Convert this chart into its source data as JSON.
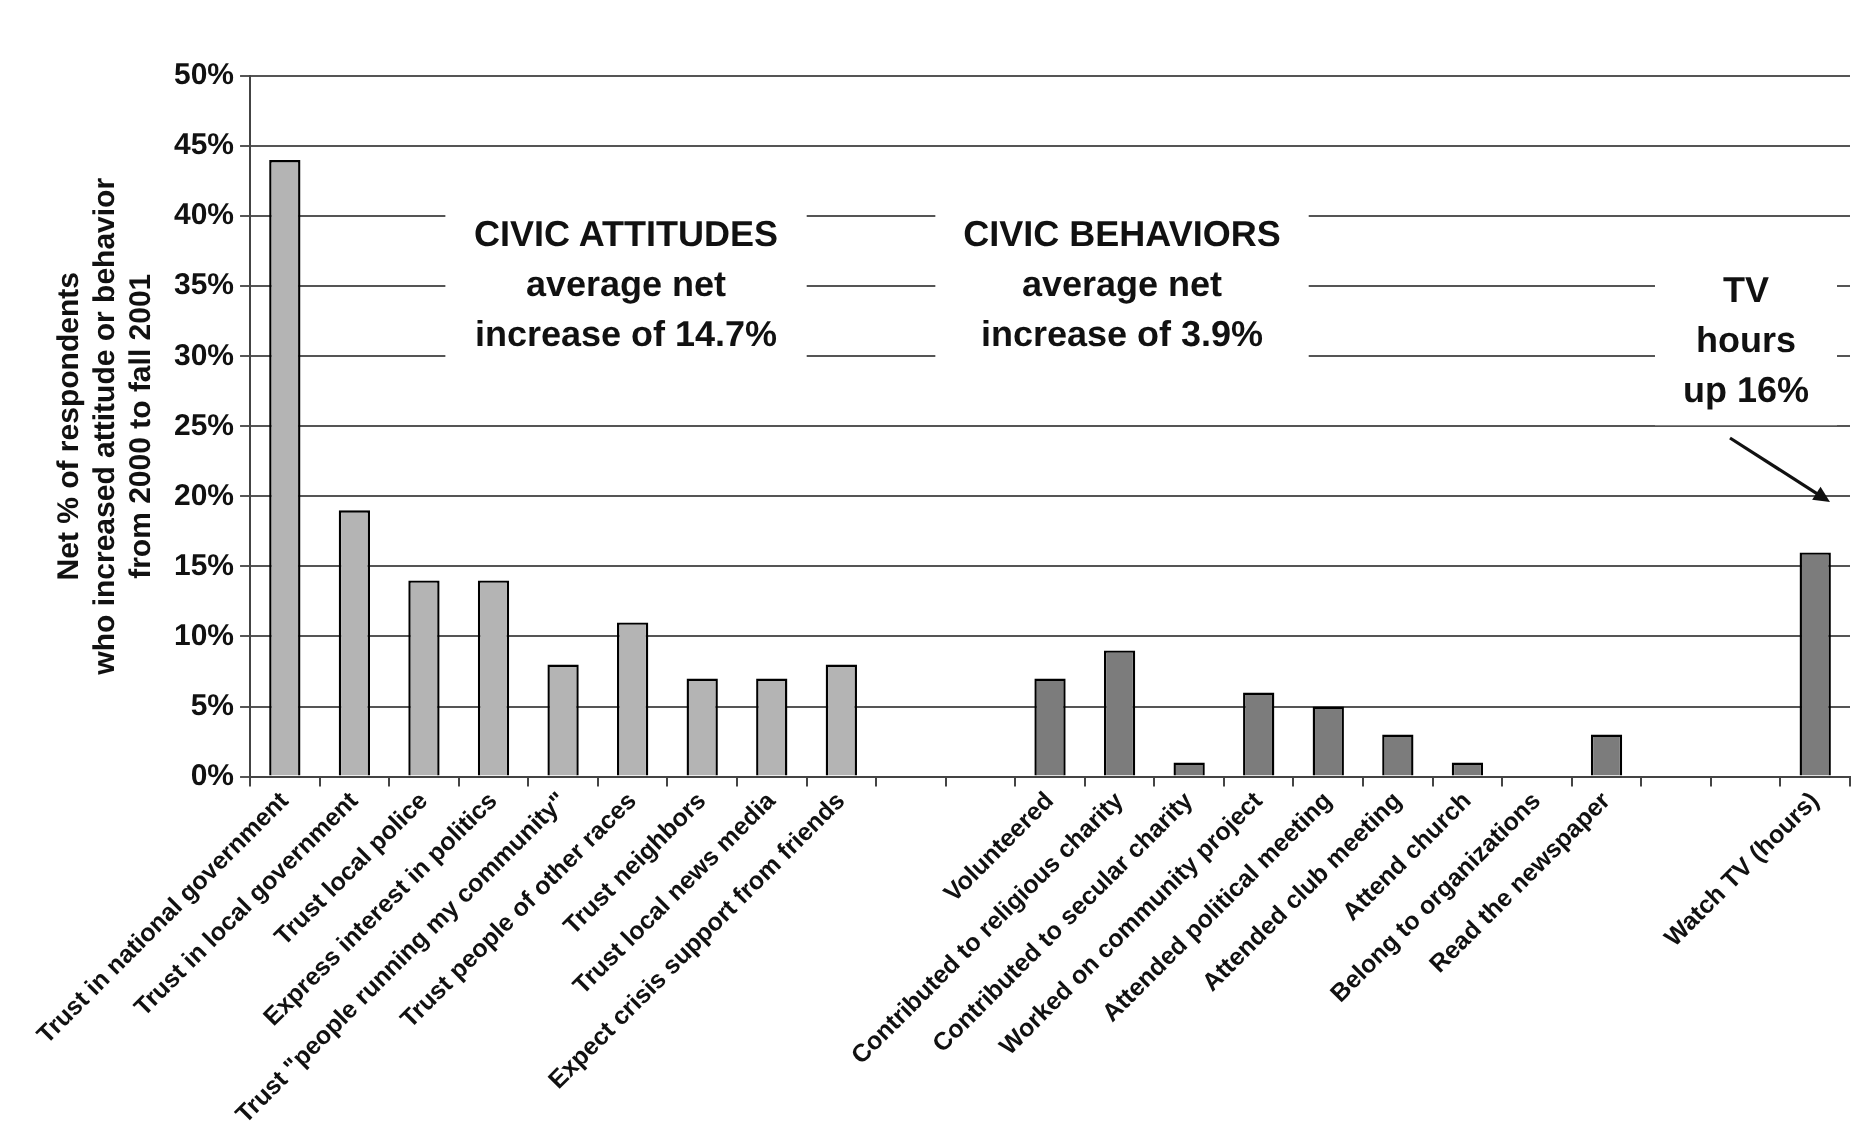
{
  "chart_data": {
    "type": "bar",
    "ylabel": "Net % of respondents\nwho increased attitude or behavior\nfrom 2000 to fall 2001",
    "categories": [
      "Trust in national government",
      "Trust in local government",
      "Trust local police",
      "Express interest in politics",
      "Trust \"people running my community\"",
      "Trust people of other races",
      "Trust neighbors",
      "Trust local news media",
      "Expect crisis support from friends",
      null,
      null,
      "Volunteered",
      "Contributed to religious charity",
      "Contributed to secular charity",
      "Worked on community project",
      "Attended political meeting",
      "Attended club meeting",
      "Attend church",
      "Belong to organizations",
      "Read the newspaper",
      null,
      null,
      "Watch TV (hours)"
    ],
    "values": [
      44,
      19,
      14,
      14,
      8,
      11,
      7,
      7,
      8,
      null,
      null,
      7,
      9,
      1,
      6,
      5,
      3,
      1,
      0,
      3,
      null,
      null,
      16
    ],
    "colors": [
      "#b4b4b4",
      "#b4b4b4",
      "#b4b4b4",
      "#b4b4b4",
      "#b4b4b4",
      "#b4b4b4",
      "#b4b4b4",
      "#b4b4b4",
      "#b4b4b4",
      null,
      null,
      "#7c7c7c",
      "#7c7c7c",
      "#7c7c7c",
      "#7c7c7c",
      "#7c7c7c",
      "#7c7c7c",
      "#7c7c7c",
      "#7c7c7c",
      "#7c7c7c",
      null,
      null,
      "#7c7c7c"
    ],
    "ylim": [
      0,
      50
    ],
    "yticks": [
      {
        "value": 0,
        "label": "0%"
      },
      {
        "value": 5,
        "label": "5%"
      },
      {
        "value": 10,
        "label": "10%"
      },
      {
        "value": 15,
        "label": "15%"
      },
      {
        "value": 20,
        "label": "20%"
      },
      {
        "value": 25,
        "label": "25%"
      },
      {
        "value": 30,
        "label": "30%"
      },
      {
        "value": 35,
        "label": "35%"
      },
      {
        "value": 40,
        "label": "40%"
      },
      {
        "value": 45,
        "label": "45%"
      },
      {
        "value": 50,
        "label": "50%"
      }
    ],
    "grid": "y",
    "legend": false,
    "annotations": [
      "CIVIC ATTITUDES\naverage net\nincrease of 14.7%",
      "CIVIC BEHAVIORS\naverage net\nincrease of 3.9%",
      "TV\nhours\nup 16%"
    ]
  }
}
